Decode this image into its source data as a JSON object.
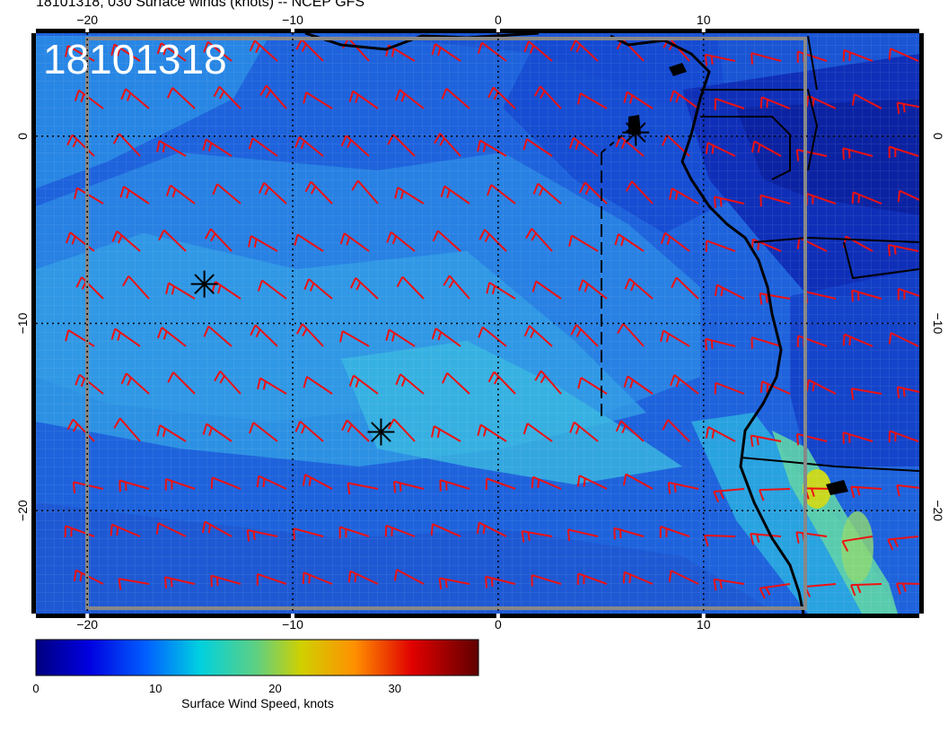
{
  "title": "18101318, 030 Surface winds (knots) -- NCEP GFS",
  "stamp": "18101318",
  "map": {
    "lon_range": [
      -22.5,
      20.5
    ],
    "lat_range": [
      -25.5,
      5.5
    ],
    "lon_ticks": [
      {
        "value": -20,
        "label": "−20"
      },
      {
        "value": -10,
        "label": "−10"
      },
      {
        "value": 0,
        "label": "0"
      },
      {
        "value": 10,
        "label": "10"
      }
    ],
    "lat_ticks": [
      {
        "value": 0,
        "label": "0"
      },
      {
        "value": -10,
        "label": "−10"
      },
      {
        "value": -20,
        "label": "−20"
      }
    ],
    "storm_markers": [
      {
        "lon": -14.3,
        "lat": -7.9
      },
      {
        "lon": -5.7,
        "lat": -15.8
      },
      {
        "lon": 6.7,
        "lat": 0.2
      }
    ],
    "colors": {
      "background": "#0f3fd0",
      "barb": "#ee1111",
      "coast": "#000000",
      "grid": "#000000"
    }
  },
  "colorbar": {
    "label": "Surface Wind Speed, knots",
    "min": 0,
    "max": 37,
    "ticks": [
      {
        "value": 0,
        "label": "0"
      },
      {
        "value": 10,
        "label": "10"
      },
      {
        "value": 20,
        "label": "20"
      },
      {
        "value": 30,
        "label": "30"
      }
    ]
  }
}
